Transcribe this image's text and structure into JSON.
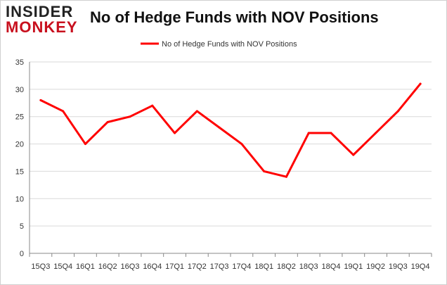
{
  "logo": {
    "line1": "INSIDER",
    "line2": "MONKEY"
  },
  "colors": {
    "series": "#ff0000",
    "grid": "#d9d9d9",
    "axis": "#888888"
  },
  "chart_data": {
    "type": "line",
    "title": "No of Hedge Funds with NOV Positions",
    "xlabel": "",
    "ylabel": "",
    "ylim": [
      0,
      35
    ],
    "yticks": [
      0,
      5,
      10,
      15,
      20,
      25,
      30,
      35
    ],
    "grid": true,
    "legend": "top-center",
    "categories": [
      "15Q3",
      "15Q4",
      "16Q1",
      "16Q2",
      "16Q3",
      "16Q4",
      "17Q1",
      "17Q2",
      "17Q3",
      "17Q4",
      "18Q1",
      "18Q2",
      "18Q3",
      "18Q4",
      "19Q1",
      "19Q2",
      "19Q3",
      "19Q4"
    ],
    "series": [
      {
        "name": "No of Hedge Funds with NOV Positions",
        "values": [
          28,
          26,
          20,
          24,
          25,
          27,
          22,
          26,
          23,
          20,
          15,
          14,
          22,
          22,
          18,
          22,
          26,
          31
        ]
      }
    ]
  }
}
